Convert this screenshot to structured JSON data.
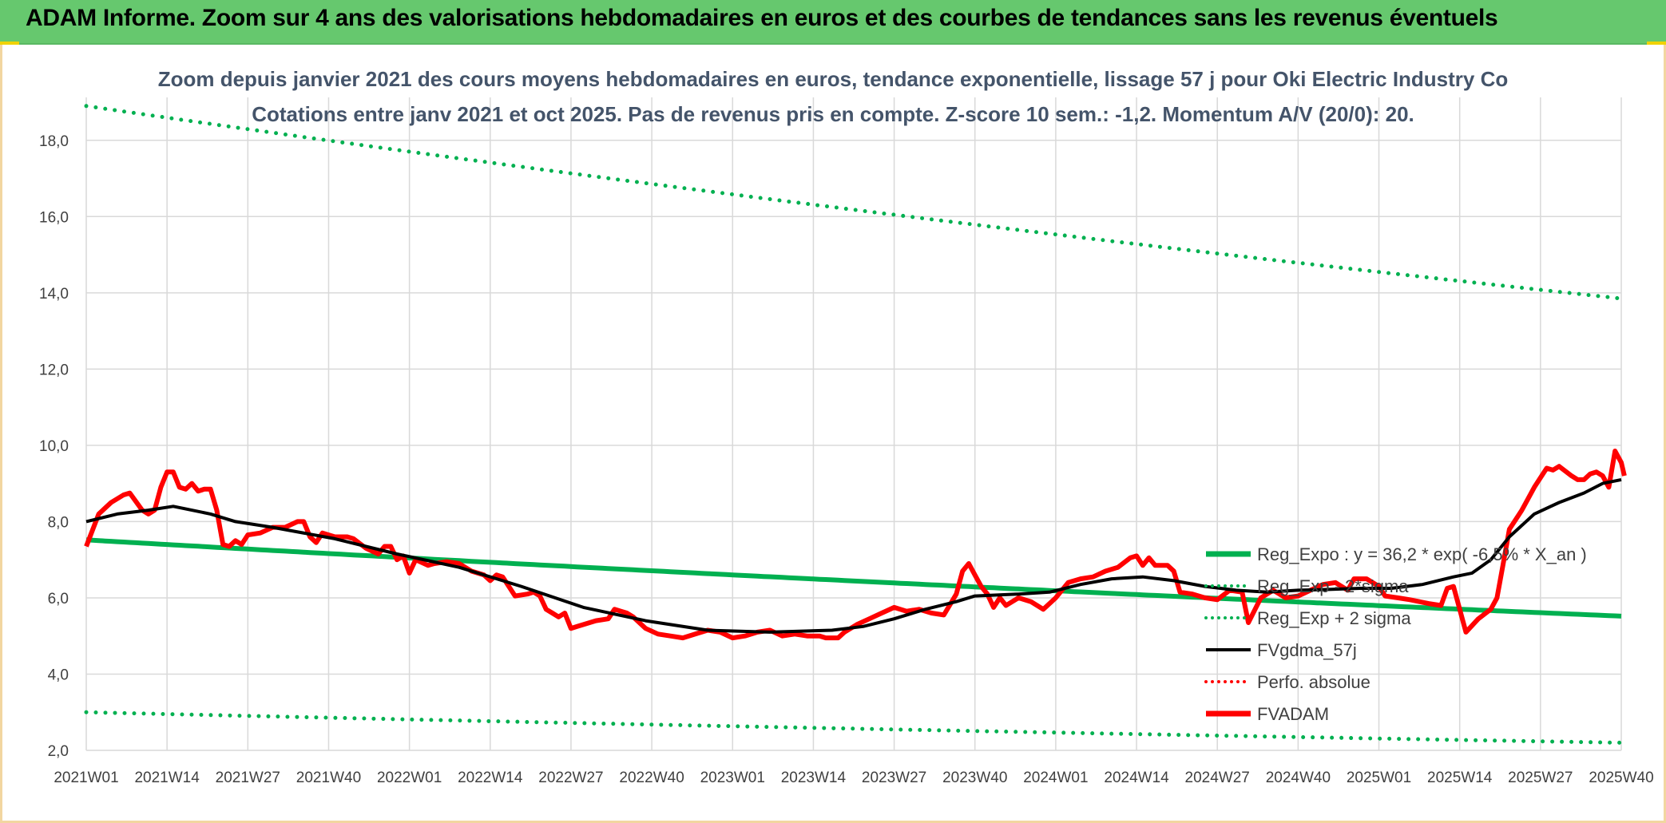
{
  "banner": {
    "title": "ADAM Informe. Zoom sur 4 ans des valorisations hebdomadaires en euros et des courbes de tendances sans les revenus éventuels"
  },
  "chart_data": {
    "type": "line",
    "title": "Zoom depuis janvier 2021 des cours moyens hebdomadaires en euros, tendance exponentielle, lissage 57 j pour Oki Electric Industry Co",
    "subtitle": "Cotations entre janv 2021 et oct 2025. Pas de revenus pris en compte. Z-score 10 sem.: -1,2. Momentum A/V (20/0): 20.",
    "ylim": [
      2.0,
      19.0
    ],
    "yticks": [
      "2,0",
      "4,0",
      "6,0",
      "8,0",
      "10,0",
      "12,0",
      "14,0",
      "16,0",
      "18,0"
    ],
    "ytick_values": [
      2,
      4,
      6,
      8,
      10,
      12,
      14,
      16,
      18
    ],
    "xticks": [
      "2021W01",
      "2021W14",
      "2021W27",
      "2021W40",
      "2022W01",
      "2022W14",
      "2022W27",
      "2022W40",
      "2023W01",
      "2023W14",
      "2023W27",
      "2023W40",
      "2024W01",
      "2024W14",
      "2024W27",
      "2024W40",
      "2025W01",
      "2025W14",
      "2025W27",
      "2025W40"
    ],
    "xtick_index": [
      0,
      13,
      26,
      39,
      52,
      65,
      78,
      91,
      104,
      117,
      130,
      143,
      156,
      169,
      182,
      195,
      208,
      221,
      234,
      247
    ],
    "x_count": 248,
    "colors": {
      "green": "#00b050",
      "black": "#000000",
      "red": "#ff0000",
      "grid": "#d9d9d9"
    },
    "legend": [
      {
        "name": "Reg_Expo : y = 36,2 * exp( -6,5% *  X_an )",
        "color": "#00b050",
        "style": "solid-thick"
      },
      {
        "name": "Reg_Exp - 2*sigma",
        "color": "#00b050",
        "style": "dotted"
      },
      {
        "name": "Reg_Exp + 2 sigma",
        "color": "#00b050",
        "style": "dotted"
      },
      {
        "name": "FVgdma_57j",
        "color": "#000000",
        "style": "solid"
      },
      {
        "name": "Perfo. absolue",
        "color": "#ff0000",
        "style": "dotted"
      },
      {
        "name": "FVADAM",
        "color": "#ff0000",
        "style": "solid-thick"
      }
    ],
    "series": {
      "reg_expo": {
        "name": "Reg_Expo",
        "start": 7.52,
        "end": 5.52
      },
      "reg_minus": {
        "name": "Reg_Exp - 2*sigma",
        "start": 3.0,
        "end": 2.2
      },
      "reg_plus": {
        "name": "Reg_Exp + 2 sigma",
        "start": 18.9,
        "end": 13.85
      },
      "fvgdma": {
        "name": "FVgdma_57j",
        "points": [
          [
            0,
            8.0
          ],
          [
            5,
            8.2
          ],
          [
            10,
            8.3
          ],
          [
            14,
            8.4
          ],
          [
            20,
            8.2
          ],
          [
            24,
            8.0
          ],
          [
            30,
            7.85
          ],
          [
            40,
            7.55
          ],
          [
            50,
            7.15
          ],
          [
            60,
            6.8
          ],
          [
            70,
            6.3
          ],
          [
            80,
            5.75
          ],
          [
            90,
            5.4
          ],
          [
            100,
            5.15
          ],
          [
            110,
            5.1
          ],
          [
            120,
            5.15
          ],
          [
            125,
            5.25
          ],
          [
            130,
            5.45
          ],
          [
            135,
            5.7
          ],
          [
            140,
            5.9
          ],
          [
            143,
            6.05
          ],
          [
            150,
            6.1
          ],
          [
            155,
            6.15
          ],
          [
            160,
            6.35
          ],
          [
            165,
            6.5
          ],
          [
            170,
            6.55
          ],
          [
            175,
            6.45
          ],
          [
            180,
            6.3
          ],
          [
            185,
            6.2
          ],
          [
            190,
            6.15
          ],
          [
            195,
            6.2
          ],
          [
            200,
            6.22
          ],
          [
            205,
            6.25
          ],
          [
            210,
            6.25
          ],
          [
            215,
            6.35
          ],
          [
            220,
            6.55
          ],
          [
            223,
            6.65
          ],
          [
            226,
            7.0
          ],
          [
            229,
            7.6
          ],
          [
            233,
            8.2
          ],
          [
            237,
            8.5
          ],
          [
            241,
            8.75
          ],
          [
            244,
            9.0
          ],
          [
            247,
            9.1
          ]
        ]
      },
      "fvadam": {
        "name": "FVADAM",
        "points": [
          [
            0,
            7.35
          ],
          [
            2,
            8.2
          ],
          [
            4,
            8.5
          ],
          [
            6,
            8.7
          ],
          [
            7,
            8.75
          ],
          [
            9,
            8.3
          ],
          [
            10,
            8.2
          ],
          [
            11,
            8.3
          ],
          [
            12,
            8.9
          ],
          [
            13,
            9.3
          ],
          [
            14,
            9.3
          ],
          [
            15,
            8.9
          ],
          [
            16,
            8.85
          ],
          [
            17,
            9.0
          ],
          [
            18,
            8.8
          ],
          [
            19,
            8.85
          ],
          [
            20,
            8.85
          ],
          [
            21,
            8.3
          ],
          [
            22,
            7.4
          ],
          [
            23,
            7.35
          ],
          [
            24,
            7.5
          ],
          [
            25,
            7.4
          ],
          [
            26,
            7.65
          ],
          [
            28,
            7.7
          ],
          [
            30,
            7.85
          ],
          [
            32,
            7.85
          ],
          [
            34,
            8.0
          ],
          [
            35,
            8.0
          ],
          [
            36,
            7.6
          ],
          [
            37,
            7.45
          ],
          [
            38,
            7.7
          ],
          [
            40,
            7.6
          ],
          [
            42,
            7.6
          ],
          [
            43,
            7.55
          ],
          [
            45,
            7.3
          ],
          [
            47,
            7.15
          ],
          [
            48,
            7.35
          ],
          [
            49,
            7.35
          ],
          [
            50,
            7.0
          ],
          [
            51,
            7.1
          ],
          [
            52,
            6.65
          ],
          [
            53,
            7.0
          ],
          [
            55,
            6.85
          ],
          [
            56,
            6.9
          ],
          [
            58,
            6.95
          ],
          [
            60,
            6.9
          ],
          [
            62,
            6.7
          ],
          [
            64,
            6.6
          ],
          [
            65,
            6.45
          ],
          [
            66,
            6.6
          ],
          [
            67,
            6.55
          ],
          [
            68,
            6.3
          ],
          [
            69,
            6.05
          ],
          [
            71,
            6.1
          ],
          [
            72,
            6.15
          ],
          [
            73,
            6.05
          ],
          [
            74,
            5.7
          ],
          [
            75,
            5.6
          ],
          [
            76,
            5.5
          ],
          [
            77,
            5.6
          ],
          [
            78,
            5.2
          ],
          [
            79,
            5.25
          ],
          [
            80,
            5.3
          ],
          [
            82,
            5.4
          ],
          [
            84,
            5.45
          ],
          [
            85,
            5.7
          ],
          [
            87,
            5.6
          ],
          [
            88,
            5.5
          ],
          [
            90,
            5.2
          ],
          [
            92,
            5.05
          ],
          [
            94,
            5.0
          ],
          [
            96,
            4.95
          ],
          [
            98,
            5.05
          ],
          [
            100,
            5.15
          ],
          [
            102,
            5.1
          ],
          [
            104,
            4.95
          ],
          [
            106,
            5.0
          ],
          [
            108,
            5.1
          ],
          [
            110,
            5.15
          ],
          [
            112,
            5.0
          ],
          [
            114,
            5.05
          ],
          [
            116,
            5.0
          ],
          [
            118,
            5.0
          ],
          [
            119,
            4.95
          ],
          [
            121,
            4.95
          ],
          [
            122,
            5.1
          ],
          [
            124,
            5.3
          ],
          [
            126,
            5.45
          ],
          [
            128,
            5.6
          ],
          [
            130,
            5.75
          ],
          [
            132,
            5.65
          ],
          [
            134,
            5.7
          ],
          [
            136,
            5.6
          ],
          [
            138,
            5.55
          ],
          [
            140,
            6.1
          ],
          [
            141,
            6.7
          ],
          [
            142,
            6.9
          ],
          [
            143,
            6.6
          ],
          [
            144,
            6.3
          ],
          [
            145,
            6.1
          ],
          [
            146,
            5.75
          ],
          [
            147,
            6.0
          ],
          [
            148,
            5.8
          ],
          [
            150,
            6.0
          ],
          [
            152,
            5.9
          ],
          [
            154,
            5.7
          ],
          [
            156,
            6.0
          ],
          [
            158,
            6.4
          ],
          [
            160,
            6.5
          ],
          [
            162,
            6.55
          ],
          [
            164,
            6.7
          ],
          [
            166,
            6.8
          ],
          [
            168,
            7.05
          ],
          [
            169,
            7.1
          ],
          [
            170,
            6.85
          ],
          [
            171,
            7.05
          ],
          [
            172,
            6.85
          ],
          [
            174,
            6.85
          ],
          [
            175,
            6.7
          ],
          [
            176,
            6.15
          ],
          [
            178,
            6.1
          ],
          [
            180,
            6.0
          ],
          [
            182,
            5.95
          ],
          [
            184,
            6.2
          ],
          [
            186,
            6.15
          ],
          [
            187,
            5.35
          ],
          [
            189,
            6.0
          ],
          [
            191,
            6.2
          ],
          [
            193,
            6.0
          ],
          [
            195,
            6.05
          ],
          [
            197,
            6.2
          ],
          [
            199,
            6.35
          ],
          [
            201,
            6.4
          ],
          [
            203,
            6.2
          ],
          [
            204,
            6.5
          ],
          [
            205,
            6.5
          ],
          [
            206,
            6.5
          ],
          [
            208,
            6.3
          ],
          [
            209,
            6.05
          ],
          [
            211,
            6.0
          ],
          [
            213,
            5.95
          ],
          [
            216,
            5.85
          ],
          [
            218,
            5.8
          ],
          [
            219,
            6.25
          ],
          [
            220,
            6.3
          ],
          [
            222,
            5.1
          ],
          [
            224,
            5.45
          ],
          [
            226,
            5.7
          ],
          [
            227,
            6.0
          ],
          [
            228,
            6.9
          ],
          [
            229,
            7.8
          ],
          [
            231,
            8.3
          ],
          [
            233,
            8.9
          ],
          [
            234,
            9.15
          ],
          [
            235,
            9.4
          ],
          [
            236,
            9.35
          ],
          [
            237,
            9.45
          ],
          [
            239,
            9.2
          ],
          [
            240,
            9.1
          ],
          [
            241,
            9.1
          ],
          [
            242,
            9.25
          ],
          [
            243,
            9.3
          ],
          [
            244,
            9.2
          ],
          [
            245,
            8.9
          ],
          [
            246,
            9.85
          ],
          [
            247,
            9.55
          ],
          [
            247.5,
            9.2
          ]
        ]
      }
    }
  }
}
